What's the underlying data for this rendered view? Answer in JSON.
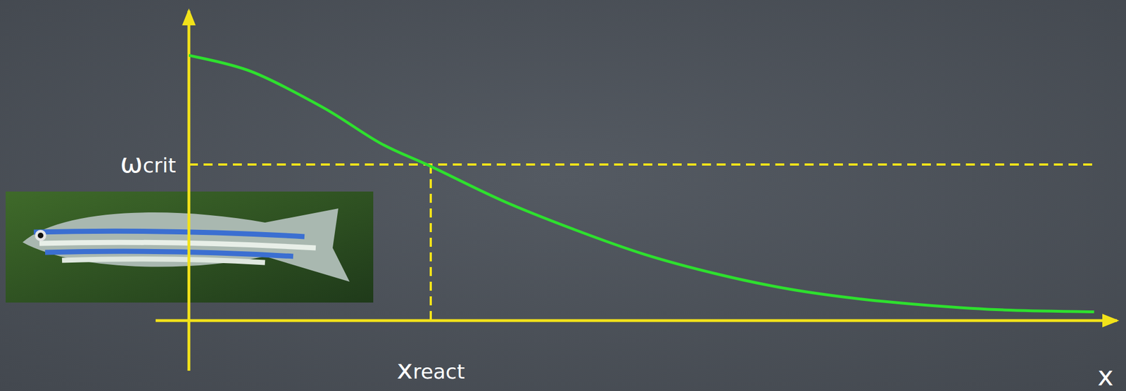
{
  "chart_data": {
    "type": "line",
    "x_label": "x",
    "x": [
      0,
      0.67,
      1.44,
      2.06,
      2.6,
      3.37,
      4.14,
      4.91,
      5.68,
      6.45,
      7.22,
      7.99,
      8.77,
      9.73
    ],
    "values": [
      8.5,
      7.98,
      6.83,
      5.68,
      4.94,
      3.84,
      2.92,
      2.11,
      1.49,
      1.01,
      0.69,
      0.48,
      0.34,
      0.28
    ],
    "color": "#2ee02e",
    "xlim": [
      0,
      10
    ],
    "ylim": [
      0,
      10
    ],
    "xticks": [],
    "yticks": [],
    "tick_labels": false,
    "grid": false,
    "hline": {
      "label": "ω",
      "subscript": "crit",
      "y": 5
    },
    "vline": {
      "label": "x",
      "subscript": "react",
      "x": 2.6
    }
  }
}
